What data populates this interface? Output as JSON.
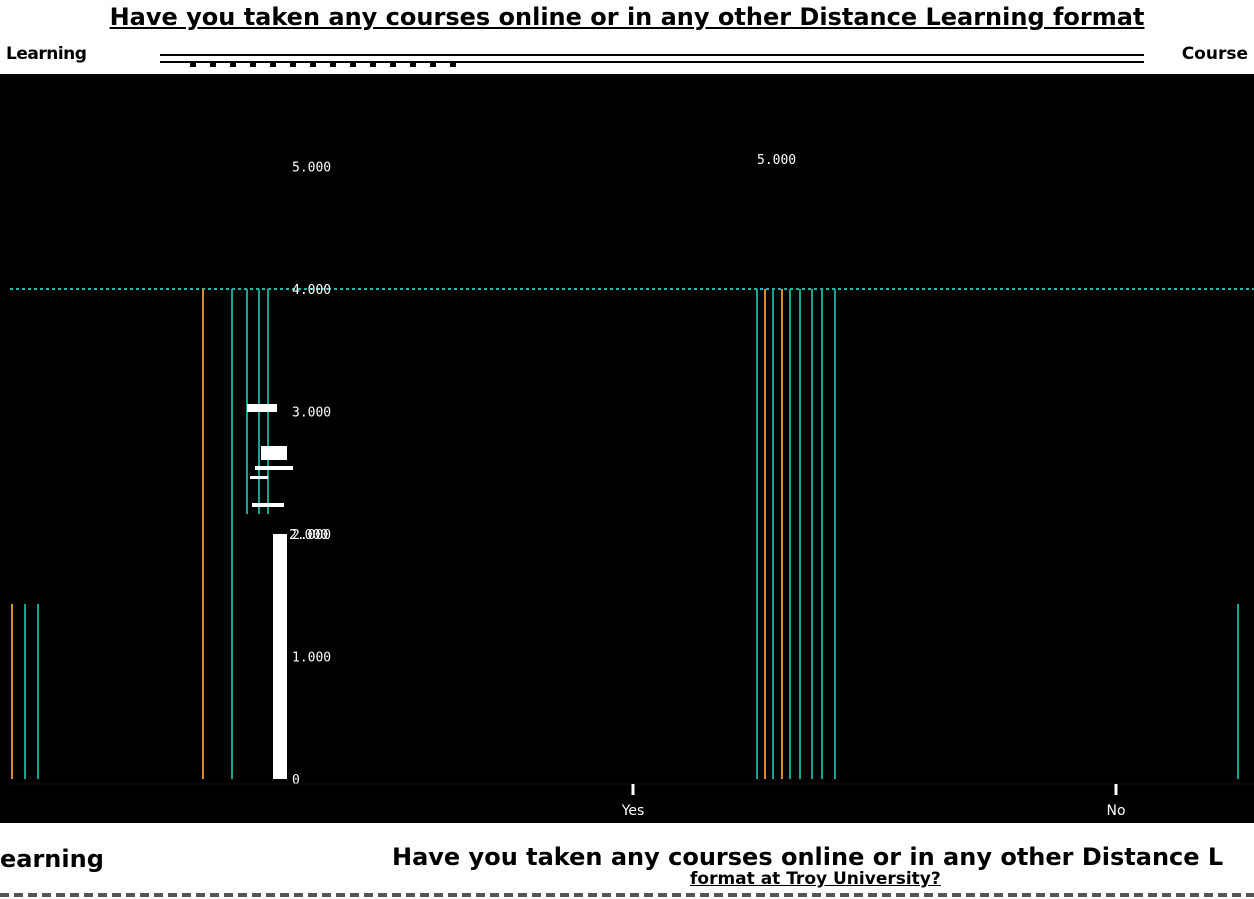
{
  "top_title": "Have you taken any courses online or in any other Distance Learning format",
  "header": {
    "left_label": "Learning",
    "right_label": "Course"
  },
  "bottom": {
    "left_label": "earning",
    "title": "Have you taken any courses online or in any other Distance L",
    "subtitle": "format at Troy University?"
  },
  "colors": {
    "background": "#000000",
    "panel": "#ffffff",
    "teal": "#1aa391",
    "orange": "#d98a2b",
    "dotted": "#2bb3a8"
  },
  "chart_data": {
    "type": "bar",
    "title": "",
    "xlabel": "",
    "ylabel": "",
    "categories": [
      "Yes",
      "No"
    ],
    "y_tick_labels": [
      "0",
      "1.000",
      "2.000",
      "3.000",
      "4.000",
      "5.000"
    ],
    "ylim": [
      0,
      5
    ],
    "reference_line": 4,
    "bar_label": "2.000",
    "bar_value": 2
  }
}
